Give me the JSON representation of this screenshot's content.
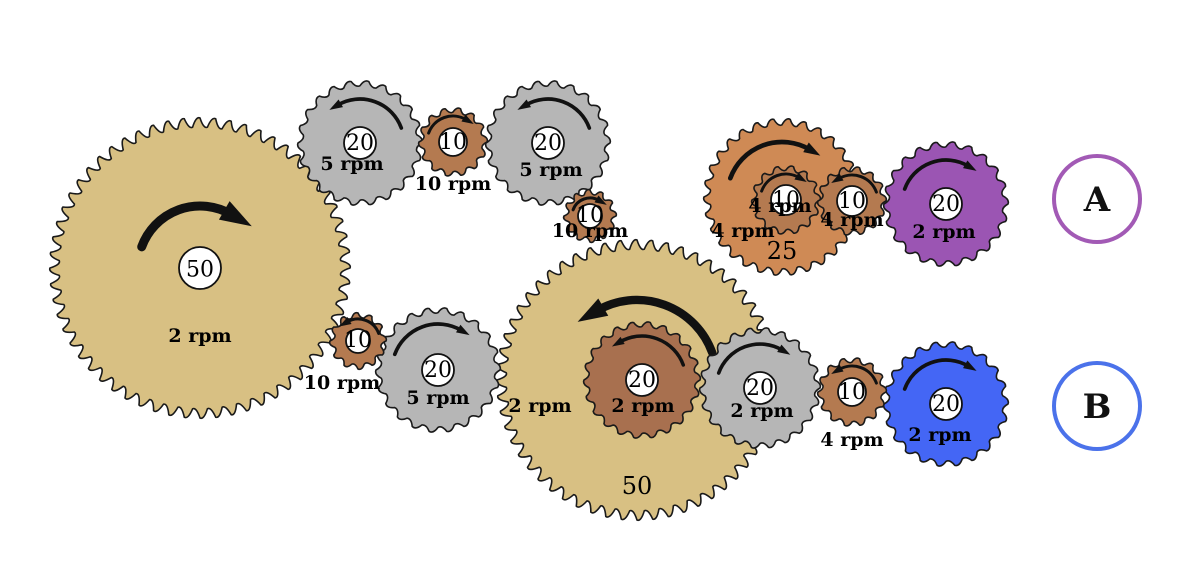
{
  "colors": {
    "tan": "#d8c083",
    "grey": "#b6b6b6",
    "copper": "#b47a50",
    "brown": "#a8704f",
    "orange": "#cf8a55",
    "purple": "#9b55b3",
    "blue": "#4466f5",
    "label_a": "#a25ab5",
    "label_b": "#4b72ea"
  },
  "gears": [
    {
      "id": "g1",
      "teeth": "50",
      "rpm": "2 rpm",
      "color": "tan",
      "direction": "clockwise"
    },
    {
      "id": "g2",
      "teeth": "20",
      "rpm": "5 rpm",
      "color": "grey",
      "direction": "counterclockwise"
    },
    {
      "id": "g3",
      "teeth": "10",
      "rpm": "10 rpm",
      "color": "copper",
      "direction": "clockwise"
    },
    {
      "id": "g4",
      "teeth": "20",
      "rpm": "5 rpm",
      "color": "grey",
      "direction": "counterclockwise"
    },
    {
      "id": "g5",
      "teeth": "10",
      "rpm": "10 rpm",
      "color": "copper",
      "direction": "clockwise"
    },
    {
      "id": "g6",
      "teeth": "10",
      "rpm": "10 rpm",
      "color": "copper",
      "direction": "counterclockwise"
    },
    {
      "id": "g7",
      "teeth": "20",
      "rpm": "5 rpm",
      "color": "grey",
      "direction": "clockwise"
    },
    {
      "id": "g8",
      "teeth": "50",
      "rpm": "2 rpm",
      "color": "tan",
      "direction": "counterclockwise"
    },
    {
      "id": "g9",
      "teeth": "20",
      "rpm": "2 rpm",
      "color": "brown",
      "direction": "counterclockwise"
    },
    {
      "id": "g10",
      "teeth": "20",
      "rpm": "2 rpm",
      "color": "grey",
      "direction": "clockwise"
    },
    {
      "id": "g11",
      "teeth": "10",
      "rpm": "4 rpm",
      "color": "copper",
      "direction": "counterclockwise"
    },
    {
      "id": "g12",
      "teeth": "20",
      "rpm": "2 rpm",
      "color": "blue",
      "direction": "clockwise"
    },
    {
      "id": "g13",
      "teeth": "25",
      "rpm": "4 rpm",
      "color": "orange",
      "direction": "clockwise"
    },
    {
      "id": "g14",
      "teeth": "10",
      "rpm": "4 rpm",
      "color": "copper",
      "direction": "clockwise"
    },
    {
      "id": "g15",
      "teeth": "10",
      "rpm": "4 rpm",
      "color": "copper",
      "direction": "counterclockwise"
    },
    {
      "id": "g16",
      "teeth": "20",
      "rpm": "2 rpm",
      "color": "purple",
      "direction": "clockwise"
    }
  ],
  "outputs": [
    {
      "id": "output-a",
      "label": "A",
      "color": "label_a"
    },
    {
      "id": "output-b",
      "label": "B",
      "color": "label_b"
    }
  ]
}
